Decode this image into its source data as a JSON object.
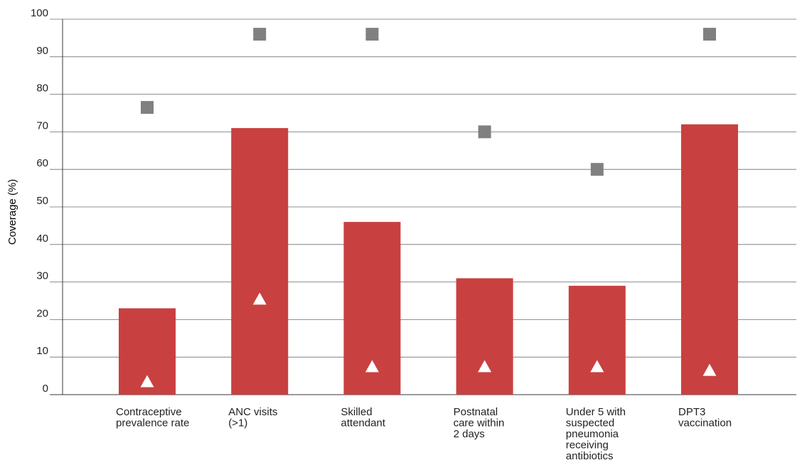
{
  "chart_data": {
    "type": "bar",
    "ylabel": "Coverage (%)",
    "ylim": [
      0,
      100
    ],
    "yticks": [
      0,
      10,
      20,
      30,
      40,
      50,
      60,
      70,
      80,
      90,
      100
    ],
    "grid": true,
    "categories": [
      [
        "Contraceptive",
        "prevalence rate"
      ],
      [
        "ANC visits",
        "(>1)"
      ],
      [
        "Skilled",
        "attendant"
      ],
      [
        "Postnatal",
        "care within",
        "2 days"
      ],
      [
        "Under 5 with",
        "suspected",
        "pneumonia",
        "receiving",
        "antibiotics"
      ],
      [
        "DPT3",
        "vaccination"
      ]
    ],
    "series": [
      {
        "marker": "bar",
        "color": "#c94040",
        "values": [
          23,
          71,
          46,
          31,
          29,
          72
        ]
      },
      {
        "marker": "square",
        "color": "#808080",
        "values": [
          76.5,
          96,
          96,
          70,
          60,
          96
        ]
      },
      {
        "marker": "triangle",
        "color": "#ffffff",
        "values": [
          3.5,
          25.5,
          7.5,
          7.5,
          7.5,
          6.5
        ]
      }
    ]
  }
}
